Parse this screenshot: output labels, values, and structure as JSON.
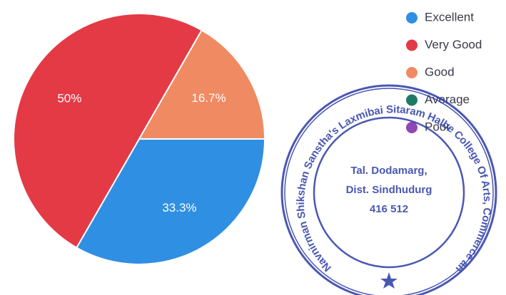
{
  "chart_data": {
    "type": "pie",
    "categories": [
      "Excellent",
      "Very Good",
      "Good",
      "Average",
      "Poor"
    ],
    "values": [
      33.3,
      50,
      16.7,
      0,
      0
    ],
    "value_labels": [
      "33.3%",
      "50%",
      "16.7%",
      null,
      null
    ],
    "colors": [
      "#2f8fe3",
      "#e33a46",
      "#f08a62",
      "#1e7a66",
      "#8e47b3"
    ],
    "legend": "top-right",
    "annotations": [
      "Navnirman Shikshan Sanstha's Laxmibai Sitaram Halbe College Of Arts, Commerce and Science",
      "Tal. Dodamarg,",
      "Dist. Sindhudurg",
      "416 512"
    ]
  }
}
